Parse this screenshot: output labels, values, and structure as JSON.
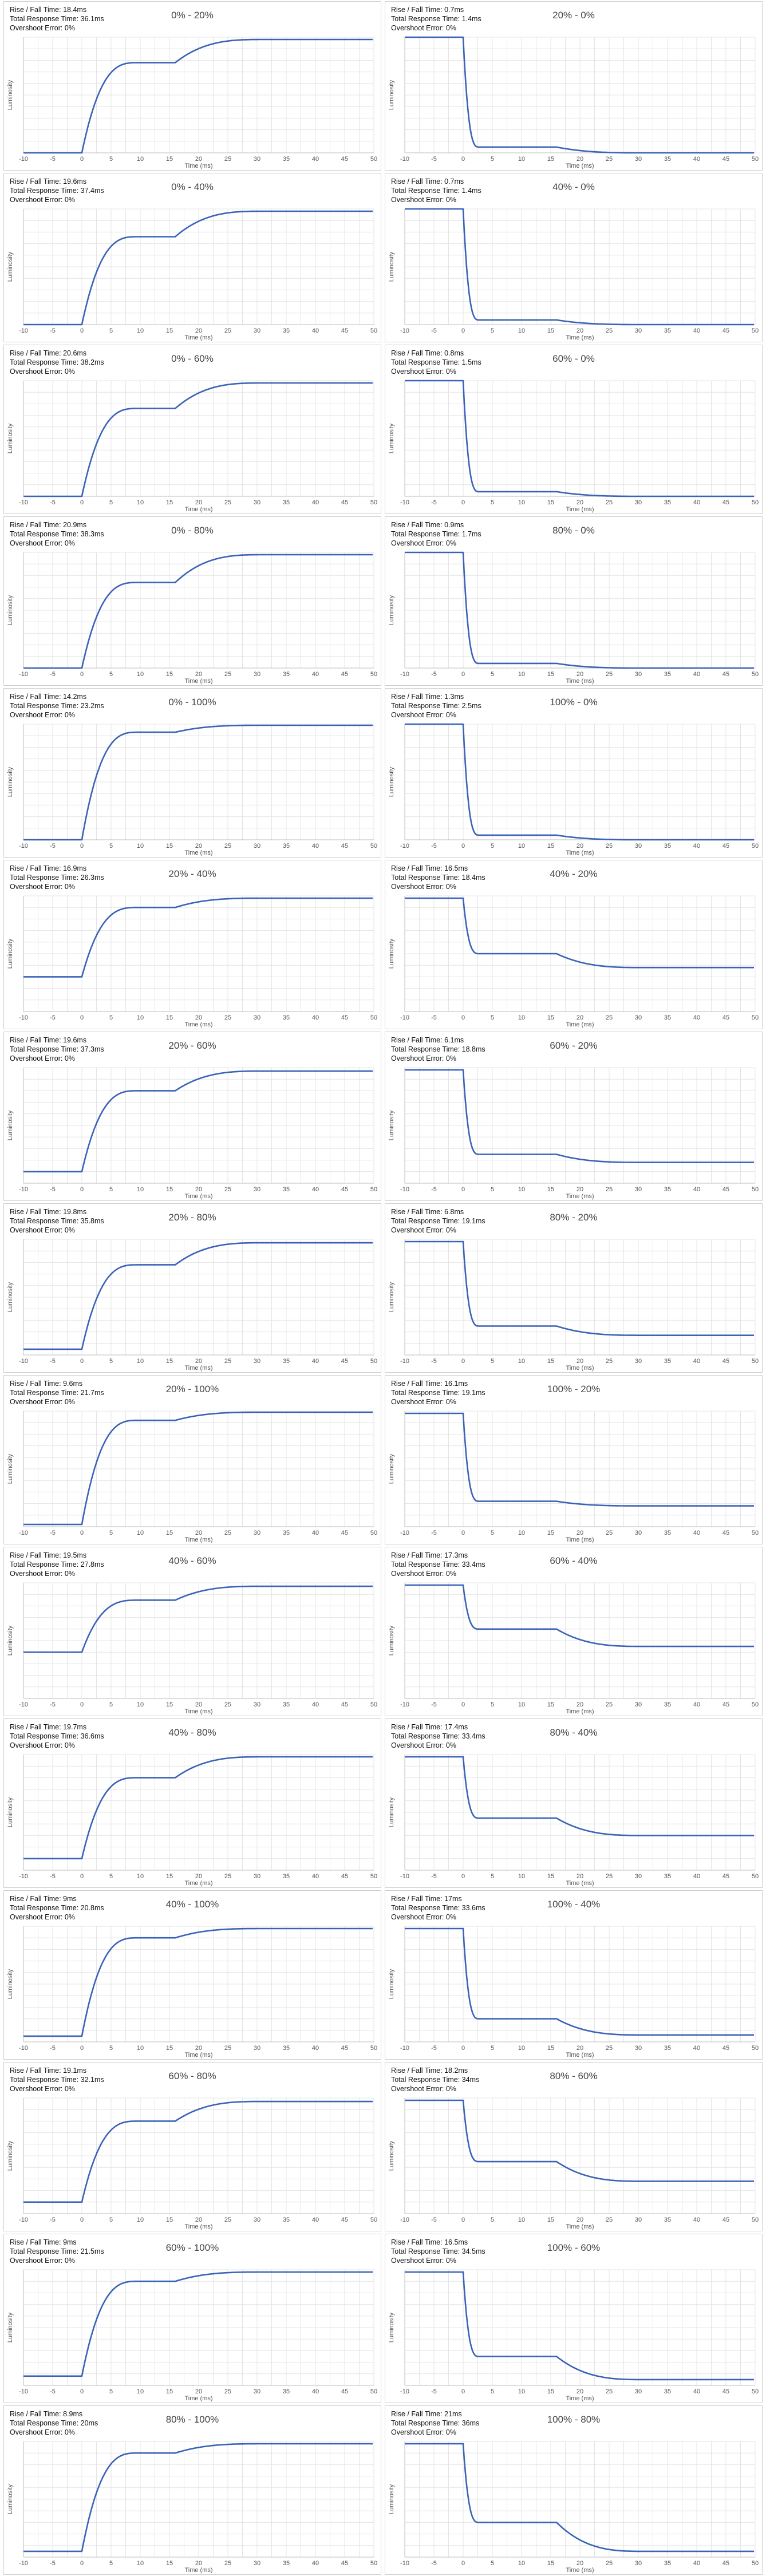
{
  "labels": {
    "rise_prefix": "Rise / Fall Time: ",
    "total_prefix": "Total Response Time: ",
    "overshoot_prefix": "Overshoot Error: ",
    "xlabel": "Time (ms)",
    "ylabel": "Luminosity"
  },
  "colors": {
    "curve": "#3a63b8",
    "grid": "#e4e4e4"
  },
  "chart_data": [
    {
      "type": "line",
      "title": "0% - 20%",
      "rise_fall": "18.4ms",
      "total": "36.1ms",
      "overshoot": "0%",
      "xlim": [
        -10,
        50
      ],
      "xticks": [
        -10,
        -5,
        0,
        5,
        10,
        15,
        20,
        25,
        30,
        35,
        40,
        45,
        50
      ],
      "start": 0.0,
      "mid": 0.78,
      "end": 0.98,
      "grid": true
    },
    {
      "type": "line",
      "title": "20% - 0%",
      "rise_fall": "0.7ms",
      "total": "1.4ms",
      "overshoot": "0%",
      "xlim": [
        -10,
        50
      ],
      "xticks": [
        -10,
        -5,
        0,
        5,
        10,
        15,
        20,
        25,
        30,
        35,
        40,
        45,
        50
      ],
      "start": 1.0,
      "mid": 0.05,
      "end": 0.0,
      "grid": true
    },
    {
      "type": "line",
      "title": "0% - 40%",
      "rise_fall": "19.6ms",
      "total": "37.4ms",
      "overshoot": "0%",
      "xlim": [
        -10,
        50
      ],
      "xticks": [
        -10,
        -5,
        0,
        5,
        10,
        15,
        20,
        25,
        30,
        35,
        40,
        45,
        50
      ],
      "start": 0.0,
      "mid": 0.76,
      "end": 0.98,
      "grid": true
    },
    {
      "type": "line",
      "title": "40% - 0%",
      "rise_fall": "0.7ms",
      "total": "1.4ms",
      "overshoot": "0%",
      "xlim": [
        -10,
        50
      ],
      "xticks": [
        -10,
        -5,
        0,
        5,
        10,
        15,
        20,
        25,
        30,
        35,
        40,
        45,
        50
      ],
      "start": 1.0,
      "mid": 0.04,
      "end": 0.0,
      "grid": true
    },
    {
      "type": "line",
      "title": "0% - 60%",
      "rise_fall": "20.6ms",
      "total": "38.2ms",
      "overshoot": "0%",
      "xlim": [
        -10,
        50
      ],
      "xticks": [
        -10,
        -5,
        0,
        5,
        10,
        15,
        20,
        25,
        30,
        35,
        40,
        45,
        50
      ],
      "start": 0.0,
      "mid": 0.76,
      "end": 0.98,
      "grid": true
    },
    {
      "type": "line",
      "title": "60% - 0%",
      "rise_fall": "0.8ms",
      "total": "1.5ms",
      "overshoot": "0%",
      "xlim": [
        -10,
        50
      ],
      "xticks": [
        -10,
        -5,
        0,
        5,
        10,
        15,
        20,
        25,
        30,
        35,
        40,
        45,
        50
      ],
      "start": 1.0,
      "mid": 0.04,
      "end": 0.0,
      "grid": true
    },
    {
      "type": "line",
      "title": "0% - 80%",
      "rise_fall": "20.9ms",
      "total": "38.3ms",
      "overshoot": "0%",
      "xlim": [
        -10,
        50
      ],
      "xticks": [
        -10,
        -5,
        0,
        5,
        10,
        15,
        20,
        25,
        30,
        35,
        40,
        45,
        50
      ],
      "start": 0.0,
      "mid": 0.74,
      "end": 0.98,
      "grid": true
    },
    {
      "type": "line",
      "title": "80% - 0%",
      "rise_fall": "0.9ms",
      "total": "1.7ms",
      "overshoot": "0%",
      "xlim": [
        -10,
        50
      ],
      "xticks": [
        -10,
        -5,
        0,
        5,
        10,
        15,
        20,
        25,
        30,
        35,
        40,
        45,
        50
      ],
      "start": 1.0,
      "mid": 0.04,
      "end": 0.0,
      "grid": true
    },
    {
      "type": "line",
      "title": "0% - 100%",
      "rise_fall": "14.2ms",
      "total": "23.2ms",
      "overshoot": "0%",
      "xlim": [
        -10,
        50
      ],
      "xticks": [
        -10,
        -5,
        0,
        5,
        10,
        15,
        20,
        25,
        30,
        35,
        40,
        45,
        50
      ],
      "start": 0.0,
      "mid": 0.93,
      "end": 0.99,
      "grid": true
    },
    {
      "type": "line",
      "title": "100% - 0%",
      "rise_fall": "1.3ms",
      "total": "2.5ms",
      "overshoot": "0%",
      "xlim": [
        -10,
        50
      ],
      "xticks": [
        -10,
        -5,
        0,
        5,
        10,
        15,
        20,
        25,
        30,
        35,
        40,
        45,
        50
      ],
      "start": 1.0,
      "mid": 0.04,
      "end": 0.0,
      "grid": true
    },
    {
      "type": "line",
      "title": "20% - 40%",
      "rise_fall": "16.9ms",
      "total": "26.3ms",
      "overshoot": "0%",
      "xlim": [
        -10,
        50
      ],
      "xticks": [
        -10,
        -5,
        0,
        5,
        10,
        15,
        20,
        25,
        30,
        35,
        40,
        45,
        50
      ],
      "start": 0.3,
      "mid": 0.9,
      "end": 0.98,
      "grid": true
    },
    {
      "type": "line",
      "title": "40% - 20%",
      "rise_fall": "16.5ms",
      "total": "18.4ms",
      "overshoot": "0%",
      "xlim": [
        -10,
        50
      ],
      "xticks": [
        -10,
        -5,
        0,
        5,
        10,
        15,
        20,
        25,
        30,
        35,
        40,
        45,
        50
      ],
      "start": 0.98,
      "mid": 0.5,
      "end": 0.38,
      "grid": true
    },
    {
      "type": "line",
      "title": "20% - 60%",
      "rise_fall": "19.6ms",
      "total": "37.3ms",
      "overshoot": "0%",
      "xlim": [
        -10,
        50
      ],
      "xticks": [
        -10,
        -5,
        0,
        5,
        10,
        15,
        20,
        25,
        30,
        35,
        40,
        45,
        50
      ],
      "start": 0.1,
      "mid": 0.8,
      "end": 0.97,
      "grid": true
    },
    {
      "type": "line",
      "title": "60% - 20%",
      "rise_fall": "6.1ms",
      "total": "18.8ms",
      "overshoot": "0%",
      "xlim": [
        -10,
        50
      ],
      "xticks": [
        -10,
        -5,
        0,
        5,
        10,
        15,
        20,
        25,
        30,
        35,
        40,
        45,
        50
      ],
      "start": 0.98,
      "mid": 0.25,
      "end": 0.18,
      "grid": true
    },
    {
      "type": "line",
      "title": "20% - 80%",
      "rise_fall": "19.8ms",
      "total": "35.8ms",
      "overshoot": "0%",
      "xlim": [
        -10,
        50
      ],
      "xticks": [
        -10,
        -5,
        0,
        5,
        10,
        15,
        20,
        25,
        30,
        35,
        40,
        45,
        50
      ],
      "start": 0.05,
      "mid": 0.78,
      "end": 0.97,
      "grid": true
    },
    {
      "type": "line",
      "title": "80% - 20%",
      "rise_fall": "6.8ms",
      "total": "19.1ms",
      "overshoot": "0%",
      "xlim": [
        -10,
        50
      ],
      "xticks": [
        -10,
        -5,
        0,
        5,
        10,
        15,
        20,
        25,
        30,
        35,
        40,
        45,
        50
      ],
      "start": 0.98,
      "mid": 0.25,
      "end": 0.17,
      "grid": true
    },
    {
      "type": "line",
      "title": "20% - 100%",
      "rise_fall": "9.6ms",
      "total": "21.7ms",
      "overshoot": "0%",
      "xlim": [
        -10,
        50
      ],
      "xticks": [
        -10,
        -5,
        0,
        5,
        10,
        15,
        20,
        25,
        30,
        35,
        40,
        45,
        50
      ],
      "start": 0.02,
      "mid": 0.92,
      "end": 0.99,
      "grid": true
    },
    {
      "type": "line",
      "title": "100% - 20%",
      "rise_fall": "16.1ms",
      "total": "19.1ms",
      "overshoot": "0%",
      "xlim": [
        -10,
        50
      ],
      "xticks": [
        -10,
        -5,
        0,
        5,
        10,
        15,
        20,
        25,
        30,
        35,
        40,
        45,
        50
      ],
      "start": 0.98,
      "mid": 0.22,
      "end": 0.18,
      "grid": true
    },
    {
      "type": "line",
      "title": "40% - 60%",
      "rise_fall": "19.5ms",
      "total": "27.8ms",
      "overshoot": "0%",
      "xlim": [
        -10,
        50
      ],
      "xticks": [
        -10,
        -5,
        0,
        5,
        10,
        15,
        20,
        25,
        30,
        35,
        40,
        45,
        50
      ],
      "start": 0.4,
      "mid": 0.85,
      "end": 0.97,
      "grid": true
    },
    {
      "type": "line",
      "title": "60% - 40%",
      "rise_fall": "17.3ms",
      "total": "33.4ms",
      "overshoot": "0%",
      "xlim": [
        -10,
        50
      ],
      "xticks": [
        -10,
        -5,
        0,
        5,
        10,
        15,
        20,
        25,
        30,
        35,
        40,
        45,
        50
      ],
      "start": 0.98,
      "mid": 0.6,
      "end": 0.45,
      "grid": true
    },
    {
      "type": "line",
      "title": "40% - 80%",
      "rise_fall": "19.7ms",
      "total": "36.6ms",
      "overshoot": "0%",
      "xlim": [
        -10,
        50
      ],
      "xticks": [
        -10,
        -5,
        0,
        5,
        10,
        15,
        20,
        25,
        30,
        35,
        40,
        45,
        50
      ],
      "start": 0.1,
      "mid": 0.8,
      "end": 0.98,
      "grid": true
    },
    {
      "type": "line",
      "title": "80% - 40%",
      "rise_fall": "17.4ms",
      "total": "33.4ms",
      "overshoot": "0%",
      "xlim": [
        -10,
        50
      ],
      "xticks": [
        -10,
        -5,
        0,
        5,
        10,
        15,
        20,
        25,
        30,
        35,
        40,
        45,
        50
      ],
      "start": 0.98,
      "mid": 0.45,
      "end": 0.3,
      "grid": true
    },
    {
      "type": "line",
      "title": "40% - 100%",
      "rise_fall": "9ms",
      "total": "20.8ms",
      "overshoot": "0%",
      "xlim": [
        -10,
        50
      ],
      "xticks": [
        -10,
        -5,
        0,
        5,
        10,
        15,
        20,
        25,
        30,
        35,
        40,
        45,
        50
      ],
      "start": 0.05,
      "mid": 0.9,
      "end": 0.98,
      "grid": true
    },
    {
      "type": "line",
      "title": "100% - 40%",
      "rise_fall": "17ms",
      "total": "33.6ms",
      "overshoot": "0%",
      "xlim": [
        -10,
        50
      ],
      "xticks": [
        -10,
        -5,
        0,
        5,
        10,
        15,
        20,
        25,
        30,
        35,
        40,
        45,
        50
      ],
      "start": 0.98,
      "mid": 0.2,
      "end": 0.06,
      "grid": true
    },
    {
      "type": "line",
      "title": "60% - 80%",
      "rise_fall": "19.1ms",
      "total": "32.1ms",
      "overshoot": "0%",
      "xlim": [
        -10,
        50
      ],
      "xticks": [
        -10,
        -5,
        0,
        5,
        10,
        15,
        20,
        25,
        30,
        35,
        40,
        45,
        50
      ],
      "start": 0.1,
      "mid": 0.8,
      "end": 0.97,
      "grid": true
    },
    {
      "type": "line",
      "title": "80% - 60%",
      "rise_fall": "18.2ms",
      "total": "34ms",
      "overshoot": "0%",
      "xlim": [
        -10,
        50
      ],
      "xticks": [
        -10,
        -5,
        0,
        5,
        10,
        15,
        20,
        25,
        30,
        35,
        40,
        45,
        50
      ],
      "start": 0.98,
      "mid": 0.45,
      "end": 0.28,
      "grid": true
    },
    {
      "type": "line",
      "title": "60% - 100%",
      "rise_fall": "9ms",
      "total": "21.5ms",
      "overshoot": "0%",
      "xlim": [
        -10,
        50
      ],
      "xticks": [
        -10,
        -5,
        0,
        5,
        10,
        15,
        20,
        25,
        30,
        35,
        40,
        45,
        50
      ],
      "start": 0.08,
      "mid": 0.9,
      "end": 0.98,
      "grid": true
    },
    {
      "type": "line",
      "title": "100% - 60%",
      "rise_fall": "16.5ms",
      "total": "34.5ms",
      "overshoot": "0%",
      "xlim": [
        -10,
        50
      ],
      "xticks": [
        -10,
        -5,
        0,
        5,
        10,
        15,
        20,
        25,
        30,
        35,
        40,
        45,
        50
      ],
      "start": 0.98,
      "mid": 0.25,
      "end": 0.05,
      "grid": true
    },
    {
      "type": "line",
      "title": "80% - 100%",
      "rise_fall": "8.9ms",
      "total": "20ms",
      "overshoot": "0%",
      "xlim": [
        -10,
        50
      ],
      "xticks": [
        -10,
        -5,
        0,
        5,
        10,
        15,
        20,
        25,
        30,
        35,
        40,
        45,
        50
      ],
      "start": 0.05,
      "mid": 0.9,
      "end": 0.98,
      "grid": true
    },
    {
      "type": "line",
      "title": "100% - 80%",
      "rise_fall": "21ms",
      "total": "36ms",
      "overshoot": "0%",
      "xlim": [
        -10,
        50
      ],
      "xticks": [
        -10,
        -5,
        0,
        5,
        10,
        15,
        20,
        25,
        30,
        35,
        40,
        45,
        50
      ],
      "start": 0.98,
      "mid": 0.3,
      "end": 0.05,
      "grid": true
    }
  ]
}
